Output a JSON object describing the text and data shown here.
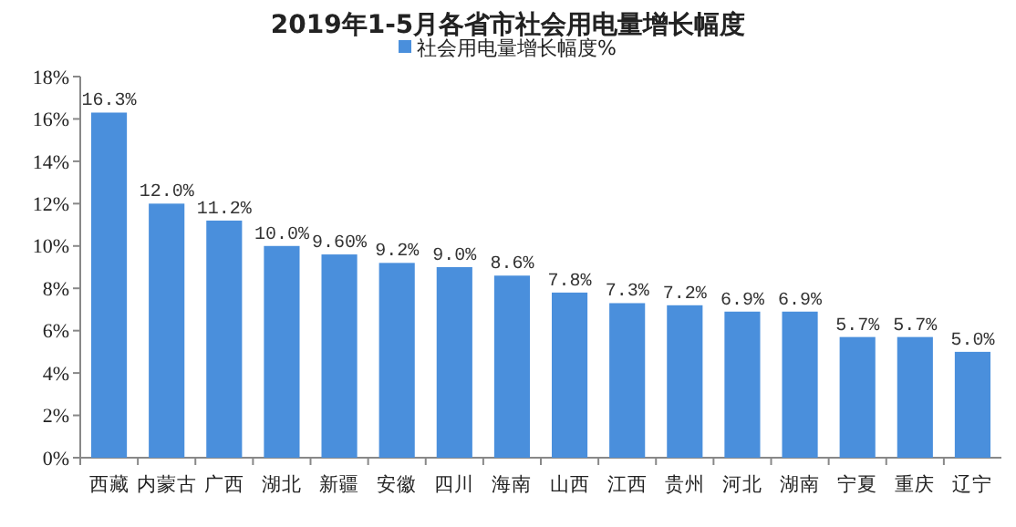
{
  "chart_data": {
    "type": "bar",
    "title": "2019年1-5月各省市社会用电量增长幅度",
    "categories": [
      "西藏",
      "内蒙古",
      "广西",
      "湖北",
      "新疆",
      "安徽",
      "四川",
      "海南",
      "山西",
      "江西",
      "贵州",
      "河北",
      "湖南",
      "宁夏",
      "重庆",
      "辽宁"
    ],
    "series": [
      {
        "name": "社会用电量增长幅度%",
        "color": "#4a8fdc",
        "values": [
          16.3,
          12.0,
          11.2,
          10.0,
          9.6,
          9.2,
          9.0,
          8.6,
          7.8,
          7.3,
          7.2,
          6.9,
          6.9,
          5.7,
          5.7,
          5.0
        ],
        "value_labels": [
          "16.3%",
          "12.0%",
          "11.2%",
          "10.0%",
          "9.60%",
          "9.2%",
          "9.0%",
          "8.6%",
          "7.8%",
          "7.3%",
          "7.2%",
          "6.9%",
          "6.9%",
          "5.7%",
          "5.7%",
          "5.0%"
        ]
      }
    ],
    "ylim": [
      0,
      18
    ],
    "yticks": [
      {
        "value": 0,
        "label": "0%"
      },
      {
        "value": 2,
        "label": "2%"
      },
      {
        "value": 4,
        "label": "4%"
      },
      {
        "value": 6,
        "label": "6%"
      },
      {
        "value": 8,
        "label": "8%"
      },
      {
        "value": 10,
        "label": "10%"
      },
      {
        "value": 12,
        "label": "12%"
      },
      {
        "value": 14,
        "label": "14%"
      },
      {
        "value": 16,
        "label": "16%"
      },
      {
        "value": 18,
        "label": "18%"
      }
    ],
    "legend": "top",
    "grid": false
  }
}
